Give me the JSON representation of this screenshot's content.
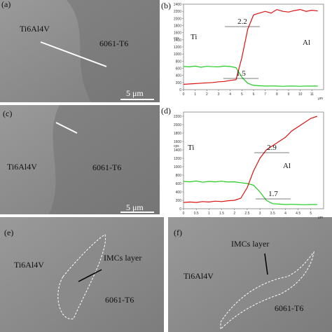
{
  "panels": [
    {
      "label": "(a)",
      "texts": [
        "Ti6Al4V",
        "6061-T6"
      ],
      "scale": "5 μm"
    },
    {
      "label": "(c)",
      "texts": [
        "Ti6Al4V",
        "6061-T6"
      ],
      "scale": "5 μm"
    },
    {
      "label": "(e)",
      "texts": [
        "Ti6Al4V",
        "IMCs layer",
        "6061-T6"
      ]
    },
    {
      "label": "(f)",
      "texts": [
        "IMCs layer",
        "Ti6Al4V",
        "6061-T6"
      ]
    }
  ],
  "charts": [
    {
      "label": "(b)",
      "type": "line",
      "y_label": "cps",
      "x_label": "μm",
      "annotations": [
        "2.2",
        "1.5"
      ],
      "xlim": [
        0,
        12
      ],
      "ylim": [
        0,
        2400
      ],
      "xticks": [
        0,
        1,
        2,
        3,
        4,
        5,
        6,
        7,
        8,
        9,
        10,
        11
      ],
      "yticks": [
        0,
        200,
        400,
        600,
        800,
        1000,
        1200,
        1400,
        1600,
        1800,
        2000,
        2200,
        2400
      ],
      "x": [
        0,
        0.5,
        1,
        1.5,
        2,
        2.5,
        3,
        3.5,
        4,
        4.5,
        5,
        5.5,
        6,
        6.5,
        7,
        7.5,
        8,
        8.5,
        9,
        9.5,
        10,
        10.5,
        11,
        11.5
      ],
      "series": [
        {
          "name": "Ti",
          "color": "#22cc22",
          "values": [
            650,
            640,
            660,
            630,
            655,
            645,
            640,
            660,
            650,
            620,
            350,
            180,
            120,
            110,
            100,
            105,
            100,
            95,
            100,
            100,
            95,
            100,
            100,
            100
          ]
        },
        {
          "name": "Al",
          "color": "#dd1111",
          "values": [
            150,
            160,
            170,
            180,
            190,
            200,
            220,
            230,
            260,
            280,
            900,
            1700,
            2100,
            2150,
            2200,
            2150,
            2250,
            2200,
            2180,
            2220,
            2250,
            2200,
            2230,
            2210
          ]
        }
      ]
    },
    {
      "label": "(d)",
      "type": "line",
      "y_label": "cps",
      "x_label": "μm",
      "annotations": [
        "2.9",
        "1.7"
      ],
      "xlim": [
        0,
        5.5
      ],
      "ylim": [
        0,
        2300
      ],
      "xticks": [
        0,
        0.5,
        1,
        1.5,
        2,
        2.5,
        3,
        3.5,
        4,
        4.5,
        5
      ],
      "yticks": [
        0,
        200,
        400,
        600,
        800,
        1000,
        1200,
        1400,
        1600,
        1800,
        2000,
        2200
      ],
      "x": [
        0,
        0.25,
        0.5,
        0.75,
        1,
        1.25,
        1.5,
        1.75,
        2,
        2.25,
        2.5,
        2.75,
        3,
        3.25,
        3.5,
        3.75,
        4,
        4.25,
        4.5,
        4.75,
        5,
        5.25
      ],
      "series": [
        {
          "name": "Ti",
          "color": "#22cc22",
          "values": [
            650,
            640,
            660,
            630,
            650,
            640,
            655,
            635,
            640,
            620,
            600,
            560,
            400,
            200,
            120,
            110,
            100,
            105,
            100,
            95,
            100,
            100
          ]
        },
        {
          "name": "Al",
          "color": "#dd1111",
          "values": [
            150,
            160,
            150,
            170,
            160,
            180,
            170,
            190,
            200,
            250,
            500,
            900,
            1200,
            1400,
            1500,
            1600,
            1700,
            1850,
            1950,
            2050,
            2150,
            2200
          ]
        }
      ]
    }
  ]
}
